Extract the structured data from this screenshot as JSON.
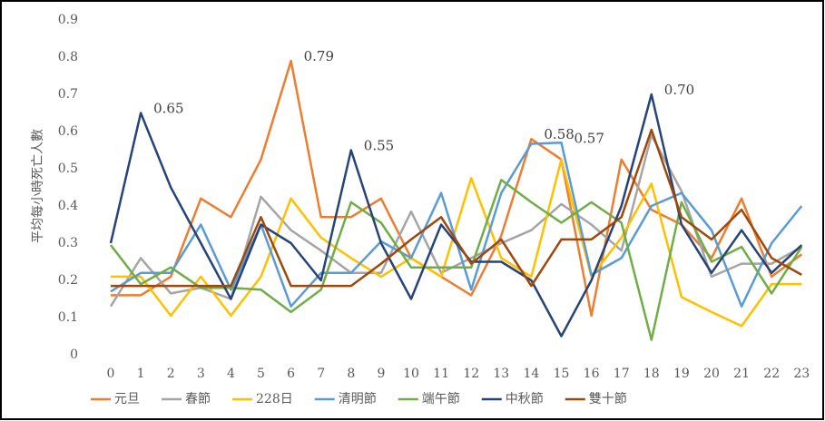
{
  "chart_data": {
    "type": "line",
    "y_label": "平均每小時死亡人數",
    "categories": [
      "0",
      "1",
      "2",
      "3",
      "4",
      "5",
      "6",
      "7",
      "8",
      "9",
      "10",
      "11",
      "12",
      "13",
      "14",
      "15",
      "16",
      "17",
      "18",
      "19",
      "20",
      "21",
      "22",
      "23"
    ],
    "ylim": [
      0,
      0.9
    ],
    "yticks": [
      0,
      0.1,
      0.2,
      0.3,
      0.4,
      0.5,
      0.6,
      0.7,
      0.8,
      0.9
    ],
    "grid": false,
    "legend": "bottom",
    "series": [
      {
        "name": "元旦",
        "color": "#ed7d31",
        "values": [
          0.16,
          0.16,
          0.21,
          0.42,
          0.37,
          0.525,
          0.79,
          0.37,
          0.37,
          0.42,
          0.26,
          0.21,
          0.16,
          0.32,
          0.58,
          0.525,
          0.105,
          0.525,
          0.39,
          0.35,
          0.26,
          0.42,
          0.21,
          0.27
        ],
        "value_labels": [
          null,
          null,
          null,
          null,
          null,
          null,
          "0.79",
          null,
          null,
          null,
          null,
          null,
          null,
          null,
          "0.58",
          null,
          null,
          null,
          null,
          null,
          null,
          null,
          null,
          null
        ]
      },
      {
        "name": "春節",
        "color": "#a5a5a5",
        "values": [
          0.13,
          0.26,
          0.165,
          0.18,
          0.15,
          0.425,
          0.335,
          0.28,
          0.22,
          0.22,
          0.385,
          0.22,
          0.26,
          0.3,
          0.335,
          0.405,
          0.35,
          0.28,
          0.59,
          0.44,
          0.21,
          0.245,
          0.245,
          0.29
        ]
      },
      {
        "name": "228日",
        "color": "#ffc000",
        "values": [
          0.21,
          0.21,
          0.105,
          0.21,
          0.105,
          0.21,
          0.42,
          0.315,
          0.26,
          0.21,
          0.26,
          0.21,
          0.475,
          0.26,
          0.21,
          0.525,
          0.21,
          0.315,
          0.46,
          0.155,
          0.115,
          0.077,
          0.19,
          0.19
        ]
      },
      {
        "name": "清明節",
        "color": "#5b9bd5",
        "values": [
          0.17,
          0.22,
          0.22,
          0.35,
          0.175,
          0.35,
          0.13,
          0.22,
          0.22,
          0.305,
          0.26,
          0.435,
          0.175,
          0.435,
          0.567,
          0.57,
          0.215,
          0.26,
          0.4,
          0.435,
          0.335,
          0.13,
          0.3,
          0.4
        ],
        "value_labels": [
          null,
          null,
          null,
          null,
          null,
          null,
          null,
          null,
          null,
          null,
          null,
          null,
          null,
          null,
          null,
          "0.57",
          null,
          null,
          null,
          null,
          null,
          null,
          null,
          null
        ]
      },
      {
        "name": "端午節",
        "color": "#70ad47",
        "values": [
          0.295,
          0.19,
          0.235,
          0.18,
          0.18,
          0.175,
          0.115,
          0.175,
          0.41,
          0.355,
          0.235,
          0.235,
          0.235,
          0.47,
          0.41,
          0.355,
          0.41,
          0.355,
          0.04,
          0.41,
          0.25,
          0.29,
          0.165,
          0.29
        ]
      },
      {
        "name": "中秋節",
        "color": "#264478",
        "values": [
          0.3,
          0.65,
          0.45,
          0.3,
          0.15,
          0.35,
          0.3,
          0.2,
          0.55,
          0.3,
          0.15,
          0.35,
          0.25,
          0.25,
          0.2,
          0.05,
          0.2,
          0.4,
          0.7,
          0.35,
          0.22,
          0.335,
          0.22,
          0.295
        ],
        "value_labels": [
          null,
          "0.65",
          null,
          null,
          null,
          null,
          null,
          null,
          "0.55",
          null,
          null,
          null,
          null,
          null,
          null,
          null,
          null,
          null,
          "0.70",
          null,
          null,
          null,
          null,
          null
        ]
      },
      {
        "name": "雙十節",
        "color": "#9e480e",
        "values": [
          0.185,
          0.185,
          0.185,
          0.185,
          0.185,
          0.37,
          0.185,
          0.185,
          0.185,
          0.245,
          0.31,
          0.37,
          0.245,
          0.31,
          0.185,
          0.31,
          0.31,
          0.37,
          0.605,
          0.37,
          0.31,
          0.39,
          0.26,
          0.215
        ]
      }
    ]
  }
}
